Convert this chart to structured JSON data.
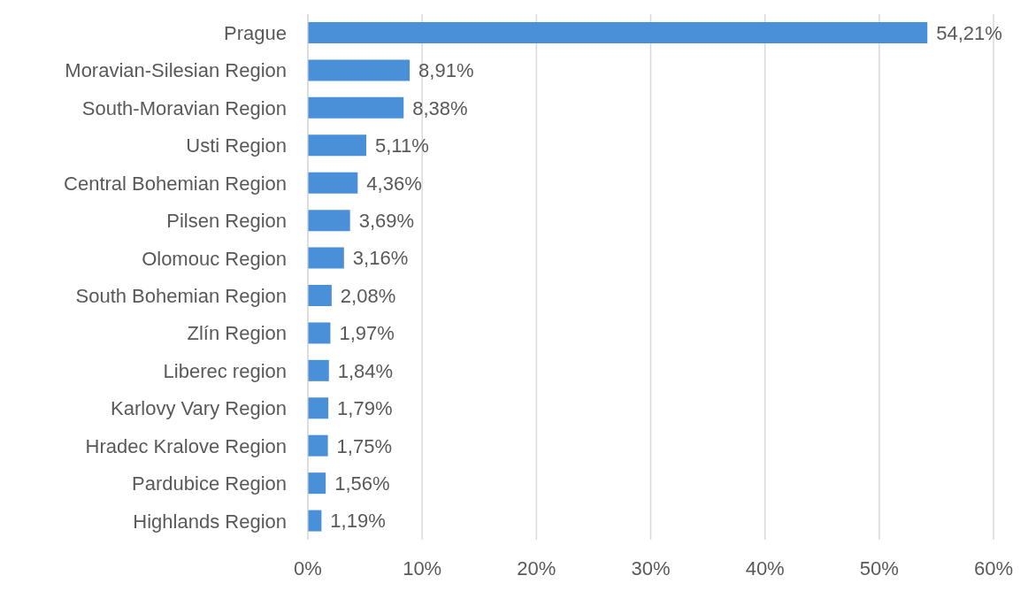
{
  "chart_data": {
    "type": "bar",
    "orientation": "horizontal",
    "categories": [
      "Prague",
      "Moravian-Silesian Region",
      "South-Moravian Region",
      "Usti Region",
      "Central Bohemian Region",
      "Pilsen Region",
      "Olomouc Region",
      "South Bohemian Region",
      "Zlín Region",
      "Liberec region",
      "Karlovy Vary Region",
      "Hradec Kralove Region",
      "Pardubice Region",
      "Highlands Region"
    ],
    "values": [
      54.21,
      8.91,
      8.38,
      5.11,
      4.36,
      3.69,
      3.16,
      2.08,
      1.97,
      1.84,
      1.79,
      1.75,
      1.56,
      1.19
    ],
    "value_labels": [
      "54,21%",
      "8,91%",
      "8,38%",
      "5,11%",
      "4,36%",
      "3,69%",
      "3,16%",
      "2,08%",
      "1,97%",
      "1,84%",
      "1,79%",
      "1,75%",
      "1,56%",
      "1,19%"
    ],
    "color": "#4a90d9",
    "xlim": [
      0,
      60
    ],
    "xticks": [
      {
        "value": 0,
        "label": "0%"
      },
      {
        "value": 10,
        "label": "10%"
      },
      {
        "value": 20,
        "label": "20%"
      },
      {
        "value": 30,
        "label": "30%"
      },
      {
        "value": 40,
        "label": "40%"
      },
      {
        "value": 50,
        "label": "50%"
      },
      {
        "value": 60,
        "label": "60%"
      }
    ],
    "grid": "x"
  }
}
